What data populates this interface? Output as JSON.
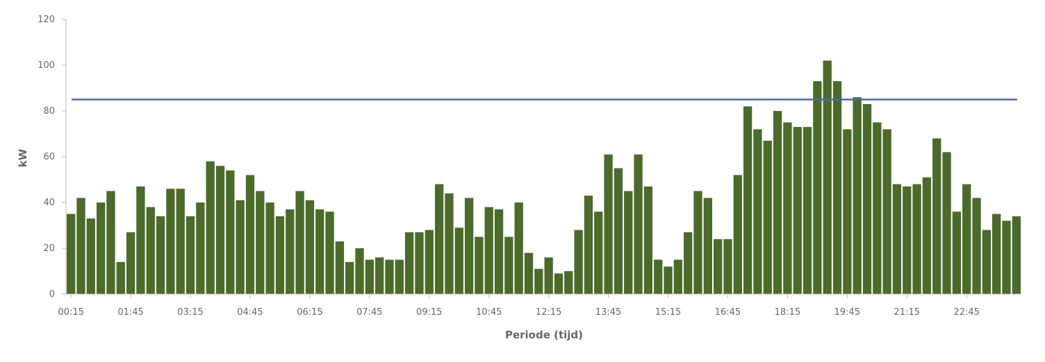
{
  "chart_data": {
    "type": "bar",
    "title": "",
    "xlabel": "Periode (tijd)",
    "ylabel": "kW",
    "ylim": [
      0,
      120
    ],
    "yticks": [
      0,
      20,
      40,
      60,
      80,
      100,
      120
    ],
    "grid": false,
    "bar_color": "#4a6b2a",
    "limit_line": {
      "value": 85,
      "color": "#4a66b0"
    },
    "x_tick_labels": [
      "00:15",
      "01:45",
      "03:15",
      "04:45",
      "06:15",
      "07:45",
      "09:15",
      "10:45",
      "12:15",
      "13:45",
      "15:15",
      "16:45",
      "18:15",
      "19:45",
      "21:15",
      "22:45"
    ],
    "x_tick_every": 6,
    "values": [
      35,
      42,
      33,
      40,
      45,
      14,
      27,
      47,
      38,
      34,
      46,
      46,
      34,
      40,
      58,
      56,
      54,
      41,
      52,
      45,
      40,
      34,
      37,
      45,
      41,
      37,
      36,
      23,
      14,
      20,
      15,
      16,
      15,
      15,
      27,
      27,
      28,
      48,
      44,
      29,
      42,
      25,
      38,
      37,
      25,
      40,
      18,
      11,
      16,
      9,
      10,
      28,
      43,
      36,
      61,
      55,
      45,
      61,
      47,
      15,
      12,
      15,
      27,
      45,
      42,
      24,
      24,
      52,
      82,
      72,
      67,
      80,
      75,
      73,
      73,
      93,
      102,
      93,
      72,
      86,
      83,
      75,
      72,
      48,
      47,
      48,
      51,
      68,
      62,
      36,
      48,
      42,
      28,
      35,
      32,
      34
    ]
  }
}
